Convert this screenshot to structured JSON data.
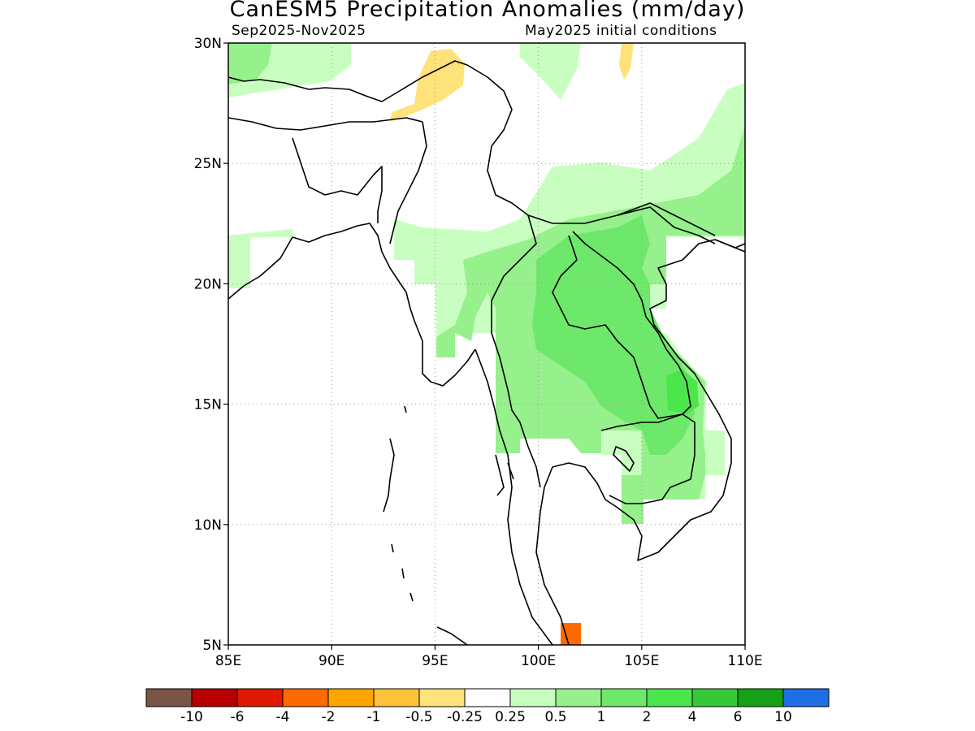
{
  "title": "CanESM5 Precipitation Anomalies (mm/day)",
  "period": "Sep2025-Nov2025",
  "init": "May2025 initial conditions",
  "map": {
    "lon_range": [
      85,
      110
    ],
    "lat_range": [
      5,
      30
    ],
    "lon_ticks": [
      "85E",
      "90E",
      "95E",
      "100E",
      "105E",
      "110E"
    ],
    "lat_ticks": [
      "5N",
      "10N",
      "15N",
      "20N",
      "25N",
      "30N"
    ],
    "grid": "dotted gray",
    "features": [
      "coastlines",
      "national borders"
    ]
  },
  "colorbar": {
    "colors": [
      "#7a5446",
      "#b80000",
      "#e01a00",
      "#ff6a00",
      "#ffa500",
      "#ffc23a",
      "#ffe27a",
      "#ffffff",
      "#c8ffc0",
      "#96f08c",
      "#6ee86a",
      "#4be64b",
      "#37c837",
      "#16a016",
      "#1e6ee6"
    ],
    "labels": [
      "-10",
      "-6",
      "-4",
      "-2",
      "-1",
      "-0.5",
      "-0.25",
      "0.25",
      "0.5",
      "1",
      "2",
      "4",
      "6",
      "10"
    ]
  },
  "anomaly_fields": [
    {
      "region": "north-west corner (Tibet)",
      "level": "0.5 to 1"
    },
    {
      "region": "northern Bay of Bengal coast",
      "level": "0.25 to 1"
    },
    {
      "region": "north-east Myanmar & Assam hills",
      "level": "-0.5 to -0.25"
    },
    {
      "region": "southern China / northern Laos",
      "level": "0.25 to 2"
    },
    {
      "region": "Thailand, Laos, Cambodia",
      "level": "1 to 2"
    },
    {
      "region": "central Vietnam coast",
      "level": "2 to 4"
    },
    {
      "region": "southern Thai peninsula tip",
      "level": "-4 to -2"
    }
  ]
}
